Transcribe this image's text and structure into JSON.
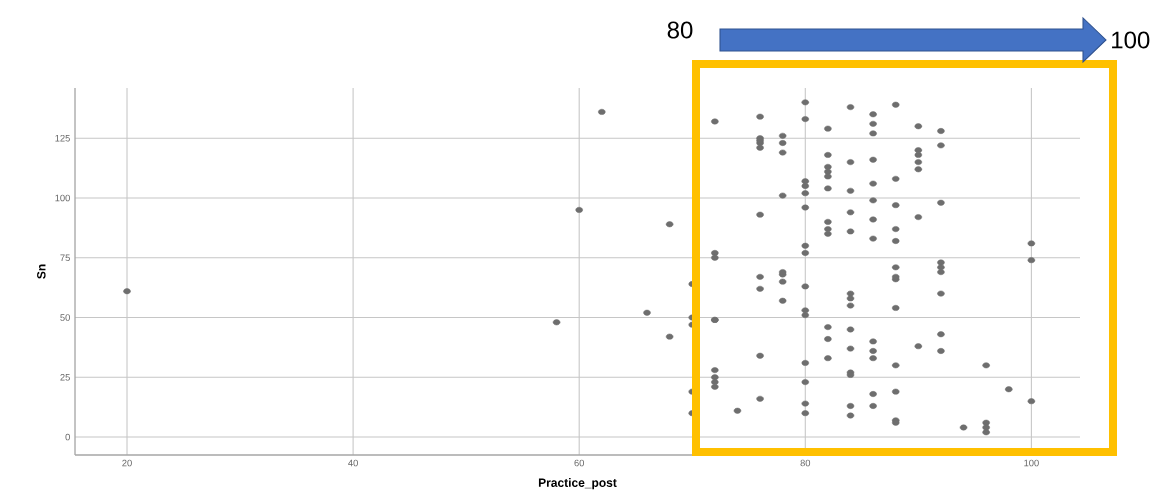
{
  "chart_data": {
    "type": "scatter",
    "xlabel": "Practice_post",
    "ylabel": "Sn",
    "x": [
      20,
      58,
      60,
      62,
      66,
      68,
      68,
      70,
      70,
      70,
      70,
      70,
      72,
      72,
      72,
      72,
      72,
      72,
      72,
      72,
      72,
      74,
      76,
      76,
      76,
      76,
      76,
      76,
      76,
      76,
      76,
      76,
      78,
      78,
      78,
      78,
      78,
      78,
      78,
      78,
      80,
      80,
      80,
      80,
      80,
      80,
      80,
      80,
      80,
      80,
      80,
      80,
      80,
      80,
      80,
      82,
      82,
      82,
      82,
      82,
      82,
      82,
      82,
      82,
      82,
      82,
      82,
      84,
      84,
      84,
      84,
      84,
      84,
      84,
      84,
      84,
      84,
      84,
      84,
      84,
      84,
      86,
      86,
      86,
      86,
      86,
      86,
      86,
      86,
      86,
      86,
      86,
      86,
      86,
      88,
      88,
      88,
      88,
      88,
      88,
      88,
      88,
      88,
      88,
      88,
      88,
      88,
      90,
      90,
      90,
      90,
      90,
      90,
      90,
      92,
      92,
      92,
      92,
      92,
      92,
      92,
      92,
      92,
      94,
      96,
      96,
      96,
      96,
      98,
      100,
      100,
      100
    ],
    "values": [
      61,
      48,
      95,
      136,
      52,
      89,
      42,
      64,
      50,
      47,
      19,
      10,
      132,
      77,
      75,
      49,
      28,
      25,
      23,
      21,
      49,
      11,
      134,
      125,
      123,
      121,
      93,
      67,
      62,
      34,
      16,
      124,
      126,
      123,
      119,
      101,
      68,
      65,
      57,
      69,
      140,
      133,
      107,
      105,
      102,
      96,
      80,
      77,
      63,
      53,
      51,
      31,
      23,
      14,
      10,
      129,
      118,
      113,
      111,
      109,
      104,
      90,
      87,
      85,
      46,
      41,
      33,
      138,
      115,
      103,
      94,
      86,
      60,
      58,
      55,
      45,
      37,
      27,
      26,
      13,
      9,
      135,
      131,
      127,
      116,
      106,
      99,
      91,
      83,
      40,
      36,
      33,
      18,
      13,
      139,
      108,
      97,
      87,
      82,
      71,
      66,
      54,
      30,
      19,
      7,
      6,
      67,
      130,
      120,
      118,
      115,
      112,
      92,
      38,
      128,
      122,
      98,
      73,
      71,
      69,
      60,
      43,
      36,
      4,
      30,
      6,
      4,
      2,
      20,
      81,
      74,
      15
    ],
    "color": "#6e6e6e",
    "marker": "circle",
    "grid": true,
    "xlim": [
      15.4,
      104.3
    ],
    "ylim": [
      -7.5,
      146
    ],
    "xticks": [
      20,
      40,
      60,
      80,
      100
    ],
    "yticks": [
      0,
      25,
      50,
      75,
      100,
      125
    ],
    "annotations": [
      "80",
      "100"
    ]
  }
}
